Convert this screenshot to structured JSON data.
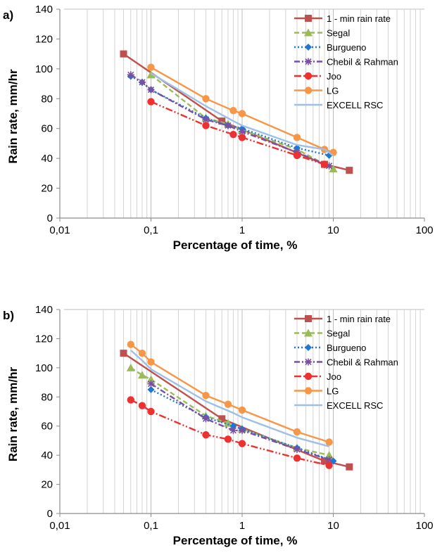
{
  "chart_data": [
    {
      "type": "line",
      "panel_label": "a)",
      "xlabel": "Percentage of time, %",
      "ylabel": "Rain  rate, mm/hr",
      "xscale": "log",
      "xlim": [
        0.01,
        100
      ],
      "ylim": [
        0,
        140
      ],
      "xticks": [
        0.01,
        0.1,
        1,
        10,
        100
      ],
      "xtick_labels": [
        "0,01",
        "0,1",
        "1",
        "10",
        "100"
      ],
      "yticks": [
        0,
        20,
        40,
        60,
        80,
        100,
        120,
        140
      ],
      "ytick_labels": [
        "0",
        "20",
        "40",
        "60",
        "80",
        "100",
        "120",
        "140"
      ],
      "grid": "vertical minor lines",
      "legend_position": "top-right",
      "series": [
        {
          "name": "1 - min rain rate",
          "color": "#c0504d",
          "dash": "solid",
          "marker": "square",
          "x": [
            0.05,
            0.6,
            8,
            15
          ],
          "y": [
            110,
            65,
            36,
            32
          ]
        },
        {
          "name": "Segal",
          "color": "#9bbb59",
          "dash": "dashed",
          "marker": "triangle",
          "x": [
            0.1,
            0.4,
            0.7,
            1,
            4,
            10
          ],
          "y": [
            96,
            67,
            63,
            59,
            46,
            33
          ]
        },
        {
          "name": "Burgueno",
          "color": "#1f77d4",
          "dash": "dotted",
          "marker": "diamond",
          "x": [
            0.06,
            0.08,
            0.1,
            0.4,
            0.7,
            1,
            4,
            9
          ],
          "y": [
            95,
            91,
            86,
            67,
            62,
            60,
            47,
            42
          ]
        },
        {
          "name": "Chebil & Rahman",
          "color": "#7a4fa1",
          "dash": "dash-dot",
          "marker": "star",
          "x": [
            0.06,
            0.08,
            0.1,
            0.4,
            0.7,
            1,
            4,
            9
          ],
          "y": [
            96,
            91,
            86,
            66,
            62,
            58,
            44,
            35
          ]
        },
        {
          "name": "Joo",
          "color": "#ee3030",
          "dash": "dash-dot-dot",
          "marker": "circle",
          "x": [
            0.1,
            0.4,
            0.8,
            1,
            4,
            8
          ],
          "y": [
            78,
            62,
            56,
            54,
            42,
            36
          ]
        },
        {
          "name": "LG",
          "color": "#f79646",
          "dash": "solid",
          "marker": "circle",
          "x": [
            0.1,
            0.4,
            0.8,
            1,
            4,
            8,
            10
          ],
          "y": [
            101,
            80,
            72,
            70,
            54,
            46,
            44
          ]
        },
        {
          "name": "EXCELL RSC",
          "color": "#9ec0e6",
          "dash": "solid",
          "marker": "none",
          "x": [
            0.1,
            0.4,
            0.8,
            1,
            4,
            8,
            10
          ],
          "y": [
            97,
            75,
            65,
            62,
            49,
            46,
            42
          ]
        }
      ]
    },
    {
      "type": "line",
      "panel_label": "b)",
      "xlabel": "Percentage of time, %",
      "ylabel": "Rain  rate, mm/hr",
      "xscale": "log",
      "xlim": [
        0.01,
        100
      ],
      "ylim": [
        0,
        140
      ],
      "xticks": [
        0.01,
        0.1,
        1,
        10,
        100
      ],
      "xtick_labels": [
        "0,01",
        "0,1",
        "1",
        "10",
        "100"
      ],
      "yticks": [
        0,
        20,
        40,
        60,
        80,
        100,
        120,
        140
      ],
      "ytick_labels": [
        "0",
        "20",
        "40",
        "60",
        "80",
        "100",
        "120",
        "140"
      ],
      "grid": "vertical minor lines",
      "legend_position": "top-right",
      "series": [
        {
          "name": "1 - min rain rate",
          "color": "#c0504d",
          "dash": "solid",
          "marker": "square",
          "x": [
            0.05,
            0.6,
            8,
            15
          ],
          "y": [
            110,
            65,
            36,
            32
          ]
        },
        {
          "name": "Segal",
          "color": "#9bbb59",
          "dash": "dashed",
          "marker": "triangle",
          "x": [
            0.06,
            0.08,
            0.1,
            0.4,
            0.7,
            1,
            4,
            9
          ],
          "y": [
            100,
            95,
            92,
            67,
            62,
            58,
            45,
            40
          ]
        },
        {
          "name": "Burgueno",
          "color": "#1f77d4",
          "dash": "dotted",
          "marker": "diamond",
          "x": [
            0.1,
            0.4,
            0.8,
            1,
            4,
            10
          ],
          "y": [
            85,
            66,
            60,
            58,
            45,
            36
          ]
        },
        {
          "name": "Chebil & Rahman",
          "color": "#7a4fa1",
          "dash": "dash-dot",
          "marker": "star",
          "x": [
            0.1,
            0.4,
            0.8,
            1,
            4,
            9
          ],
          "y": [
            89,
            65,
            57,
            57,
            44,
            37
          ]
        },
        {
          "name": "Joo",
          "color": "#ee3030",
          "dash": "dash-dot-dot",
          "marker": "circle",
          "x": [
            0.06,
            0.08,
            0.1,
            0.4,
            0.7,
            1,
            4,
            9
          ],
          "y": [
            78,
            74,
            70,
            54,
            51,
            48,
            38,
            33
          ]
        },
        {
          "name": "LG",
          "color": "#f79646",
          "dash": "solid",
          "marker": "circle",
          "x": [
            0.06,
            0.08,
            0.1,
            0.4,
            0.7,
            1,
            4,
            9
          ],
          "y": [
            116,
            110,
            104,
            81,
            75,
            71,
            56,
            49
          ]
        },
        {
          "name": "EXCELL RSC",
          "color": "#9ec0e6",
          "dash": "solid",
          "marker": "none",
          "x": [
            0.06,
            0.08,
            0.1,
            0.4,
            0.8,
            1,
            4,
            9
          ],
          "y": [
            112,
            105,
            99,
            77,
            69,
            66,
            52,
            46
          ]
        }
      ]
    }
  ]
}
